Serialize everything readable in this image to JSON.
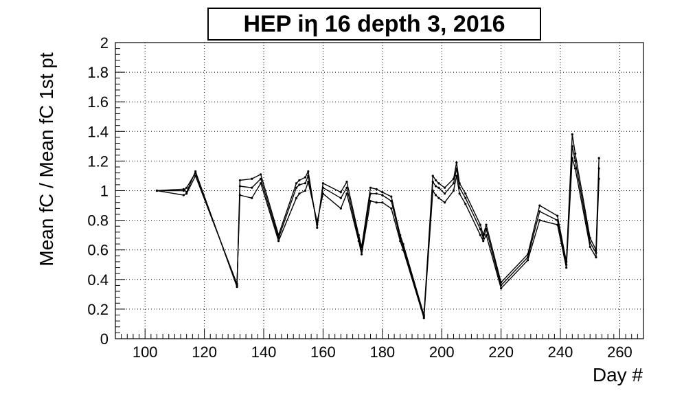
{
  "chart_data": {
    "type": "line",
    "title": "HEP iη 16 depth 3, 2016",
    "xlabel": "Day #",
    "ylabel": "Mean fC / Mean fC 1st pt",
    "xlim": [
      90,
      268
    ],
    "ylim": [
      0,
      2
    ],
    "xticks": [
      100,
      120,
      140,
      160,
      180,
      200,
      220,
      240,
      260
    ],
    "yticks": [
      0,
      0.2,
      0.4,
      0.6,
      0.8,
      1,
      1.2,
      1.4,
      1.6,
      1.8,
      2
    ],
    "grid": true,
    "legend": "none",
    "line_color": "#000000",
    "x": [
      104,
      113,
      114,
      117,
      131,
      132,
      136,
      139,
      145,
      151,
      152,
      154,
      155,
      158,
      160,
      166,
      168,
      172,
      173,
      176,
      178,
      180,
      183,
      186,
      187,
      194,
      197,
      198,
      199,
      201,
      204,
      205,
      206,
      208,
      213,
      214,
      215,
      220,
      229,
      233,
      239,
      242,
      244,
      245,
      250,
      252,
      253
    ],
    "series": [
      {
        "values": [
          1.0,
          1.0,
          1.02,
          1.12,
          0.36,
          1.03,
          1.02,
          1.08,
          0.68,
          1.02,
          1.04,
          1.05,
          1.1,
          0.77,
          1.02,
          0.95,
          1.02,
          0.68,
          0.59,
          0.98,
          0.98,
          0.97,
          0.93,
          0.68,
          0.62,
          0.15,
          1.06,
          1.03,
          1.02,
          0.98,
          1.05,
          1.15,
          1.02,
          0.95,
          0.74,
          0.68,
          0.74,
          0.36,
          0.55,
          0.86,
          0.8,
          0.5,
          1.3,
          1.2,
          0.65,
          0.58,
          1.15
        ]
      },
      {
        "values": [
          1.0,
          1.01,
          0.99,
          1.13,
          0.35,
          1.07,
          1.08,
          1.11,
          0.7,
          1.05,
          1.07,
          1.09,
          1.13,
          0.75,
          1.05,
          0.99,
          1.06,
          0.7,
          0.62,
          1.02,
          1.01,
          0.99,
          0.96,
          0.7,
          0.64,
          0.16,
          1.1,
          1.07,
          1.05,
          1.02,
          1.08,
          1.19,
          1.05,
          0.98,
          0.77,
          0.7,
          0.77,
          0.38,
          0.57,
          0.9,
          0.83,
          0.52,
          1.38,
          1.25,
          0.68,
          0.6,
          1.22
        ]
      },
      {
        "values": [
          1.0,
          0.97,
          0.98,
          1.1,
          0.37,
          0.97,
          0.95,
          1.05,
          0.66,
          0.95,
          0.98,
          1.0,
          1.06,
          0.79,
          0.98,
          0.88,
          0.98,
          0.66,
          0.57,
          0.93,
          0.92,
          0.92,
          0.88,
          0.66,
          0.6,
          0.14,
          1.0,
          0.97,
          0.95,
          0.92,
          1.0,
          1.1,
          0.98,
          0.91,
          0.7,
          0.66,
          0.7,
          0.34,
          0.53,
          0.8,
          0.77,
          0.48,
          1.22,
          1.15,
          0.62,
          0.55,
          1.08
        ]
      }
    ]
  }
}
